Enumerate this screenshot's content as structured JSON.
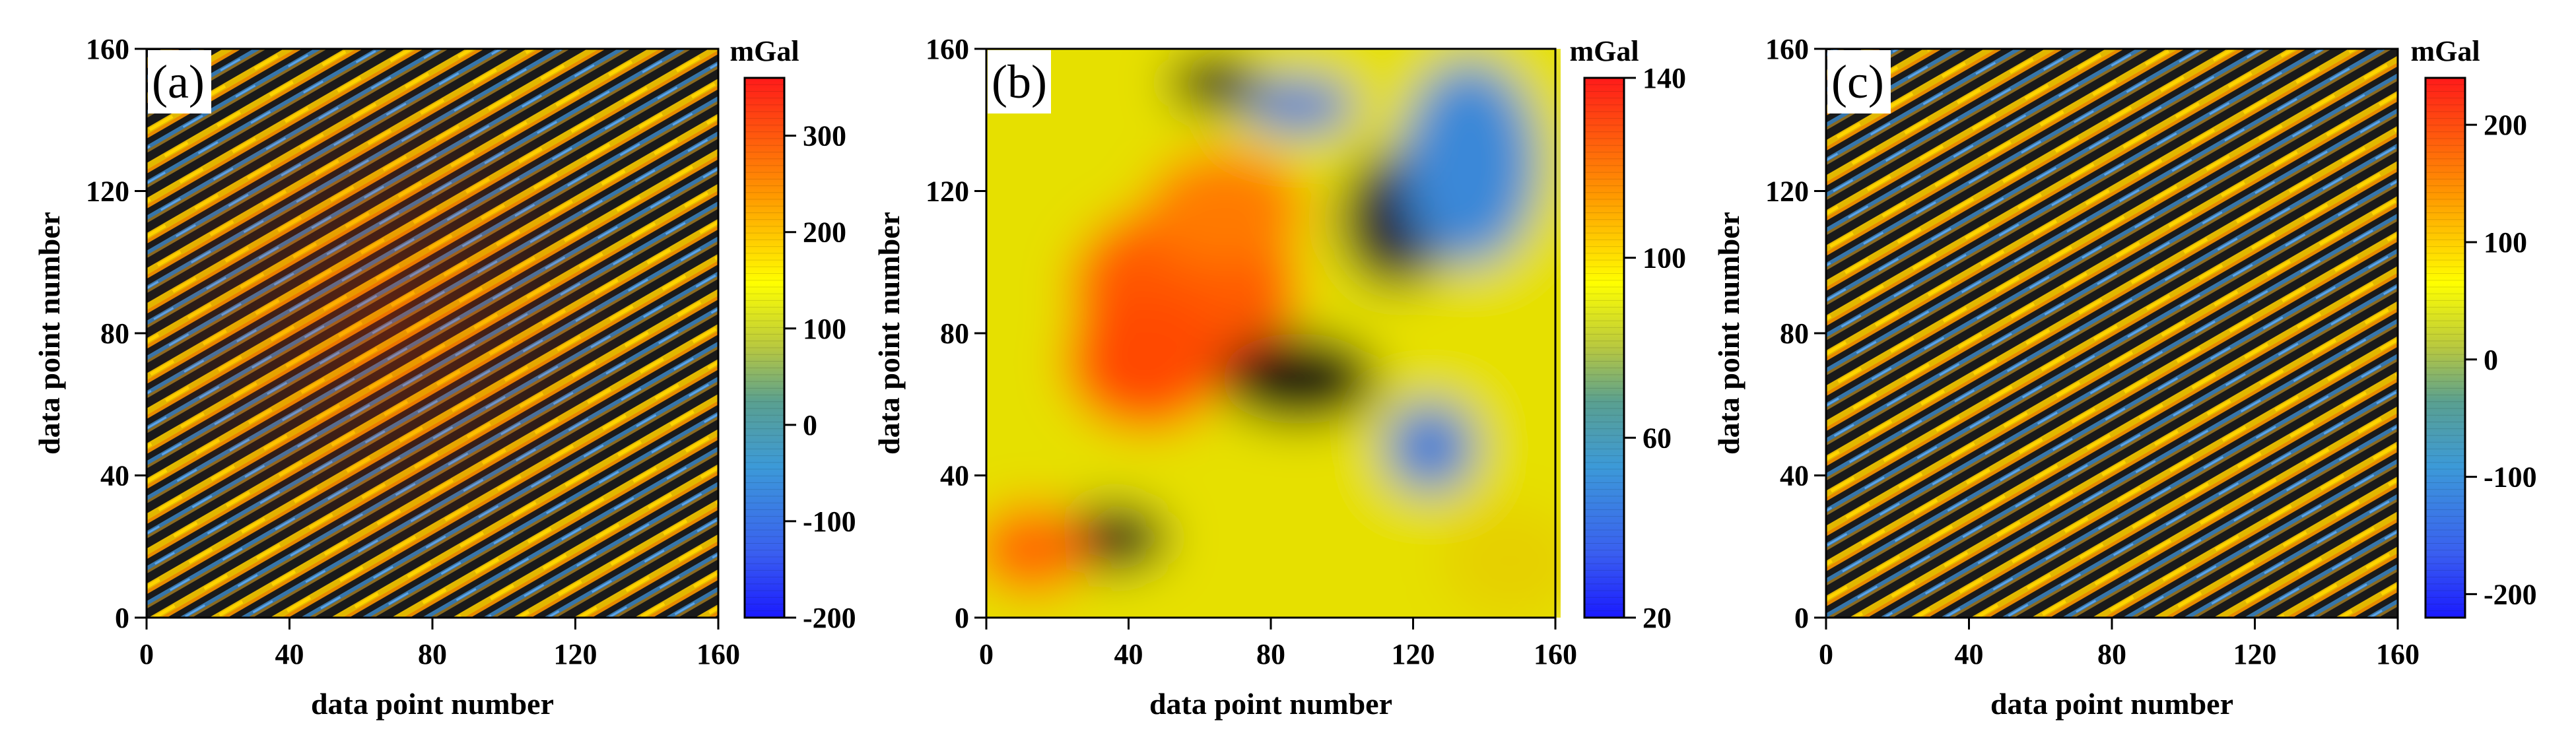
{
  "figure": {
    "panels": [
      {
        "panel_label": "(a)",
        "chart_data": {
          "type": "heatmap",
          "pattern": "stripes",
          "xlabel": "data point number",
          "ylabel": "data point number",
          "xlim": [
            0,
            160
          ],
          "ylim": [
            0,
            160
          ],
          "x_ticks": [
            0,
            40,
            80,
            120,
            160
          ],
          "y_ticks": [
            0,
            40,
            80,
            120,
            160
          ],
          "colorbar": {
            "title": "mGal",
            "range": [
              -200,
              360
            ],
            "ticks": [
              -200,
              -100,
              0,
              100,
              200,
              300
            ]
          },
          "background_colors": [
            "#e8c400",
            "#e47a00",
            "#151515",
            "#3a8fd0"
          ]
        }
      },
      {
        "panel_label": "(b)",
        "chart_data": {
          "type": "heatmap",
          "pattern": "smooth",
          "xlabel": "data point number",
          "ylabel": "data point number",
          "xlim": [
            0,
            160
          ],
          "ylim": [
            0,
            160
          ],
          "x_ticks": [
            0,
            40,
            80,
            120,
            160
          ],
          "y_ticks": [
            0,
            40,
            80,
            120,
            160
          ],
          "colorbar": {
            "title": "mGal",
            "range": [
              20,
              140
            ],
            "ticks": [
              20,
              60,
              100,
              140
            ]
          },
          "background_colors": [
            "#e8e000",
            "#ff6a00",
            "#121212",
            "#3a8ad8"
          ]
        }
      },
      {
        "panel_label": "(c)",
        "chart_data": {
          "type": "heatmap",
          "pattern": "stripes",
          "xlabel": "data point number",
          "ylabel": "data point number",
          "xlim": [
            0,
            160
          ],
          "ylim": [
            0,
            160
          ],
          "x_ticks": [
            0,
            40,
            80,
            120,
            160
          ],
          "y_ticks": [
            0,
            40,
            80,
            120,
            160
          ],
          "colorbar": {
            "title": "mGal",
            "range": [
              -220,
              240
            ],
            "ticks": [
              -200,
              -100,
              0,
              100,
              200
            ]
          },
          "background_colors": [
            "#e8c400",
            "#e47a00",
            "#151515",
            "#3a8fd0"
          ]
        }
      }
    ]
  }
}
